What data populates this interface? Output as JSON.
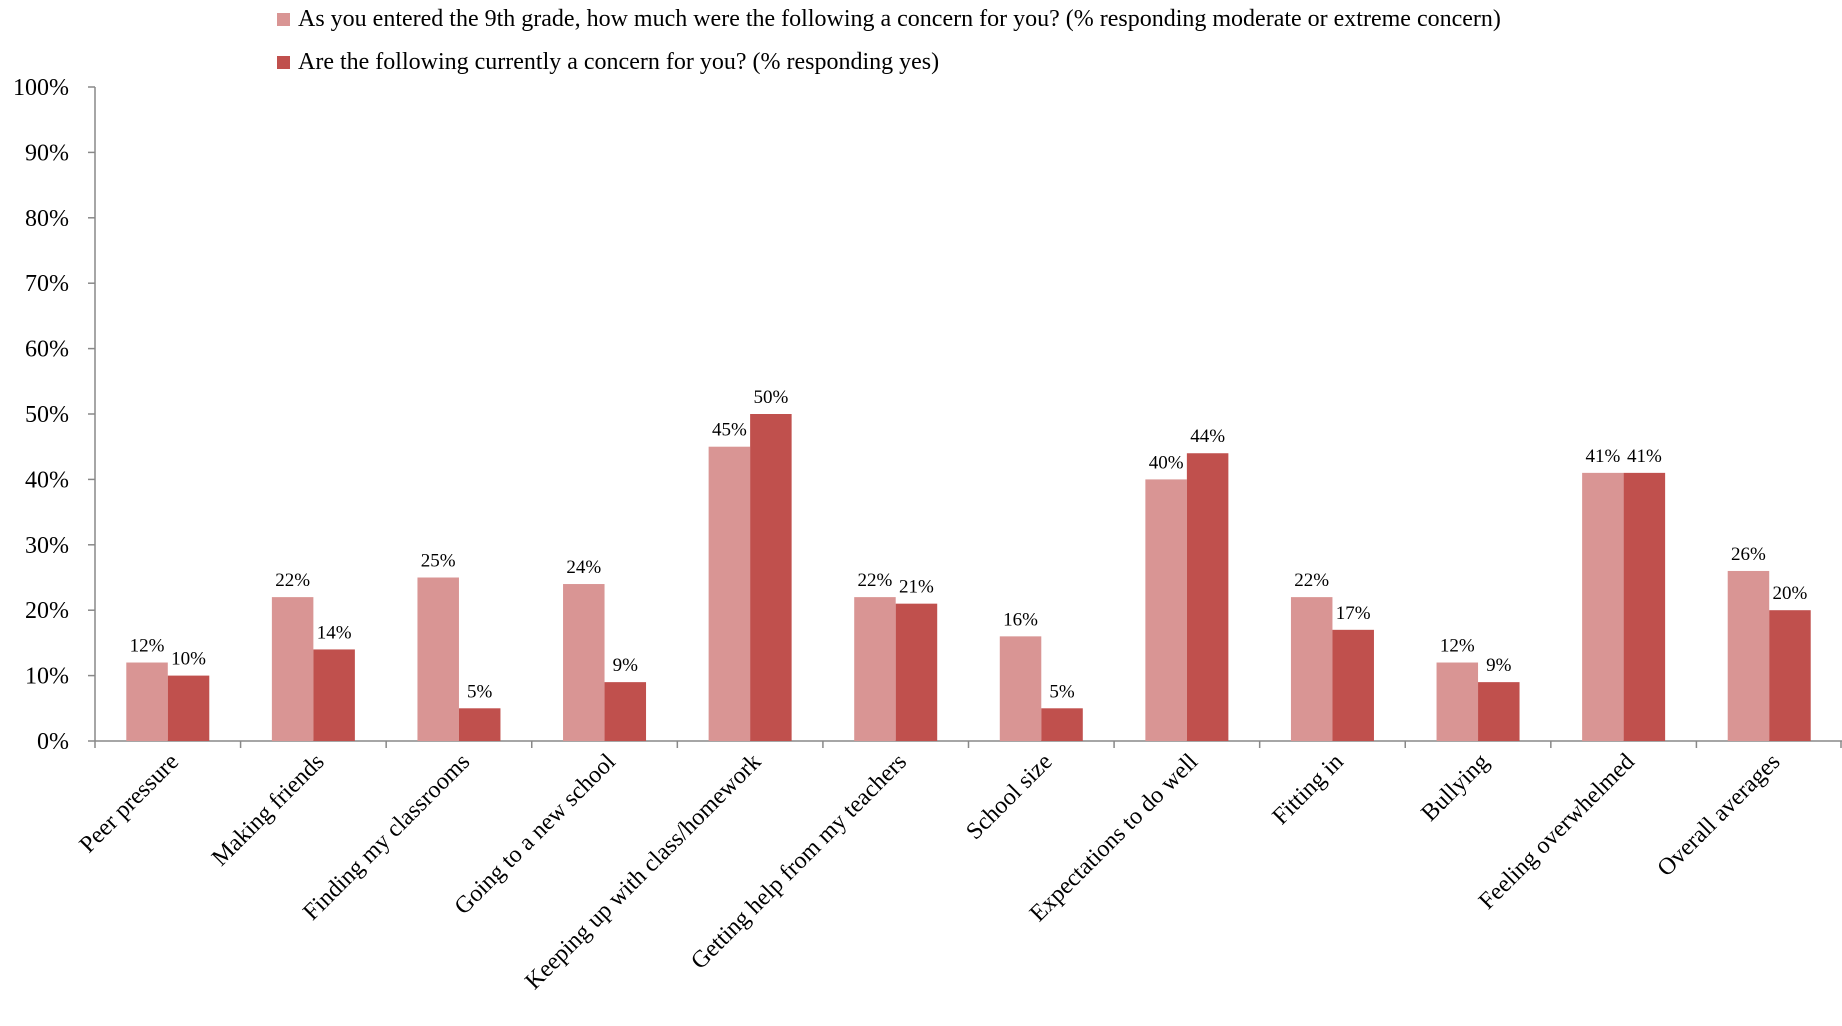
{
  "chart_data": {
    "type": "bar",
    "title": "",
    "xlabel": "",
    "ylabel": "",
    "ylim": [
      0,
      100
    ],
    "yticks": [
      "0%",
      "10%",
      "20%",
      "30%",
      "40%",
      "50%",
      "60%",
      "70%",
      "80%",
      "90%",
      "100%"
    ],
    "legend_position": "top-left",
    "categories": [
      "Peer pressure",
      "Making friends",
      "Finding my classrooms",
      "Going to a new school",
      "Keeping up with class/homework",
      "Getting help from my teachers",
      "School size",
      "Expectations to do well",
      "Fitting in",
      "Bullying",
      "Feeling overwhelmed",
      "Overall averages"
    ],
    "series": [
      {
        "name": "As you entered the 9th grade, how much were the following a concern for you? (% responding moderate or extreme concern)",
        "color": "#d99594",
        "values": [
          12,
          22,
          25,
          24,
          45,
          22,
          16,
          40,
          22,
          12,
          41,
          26
        ],
        "labels": [
          "12%",
          "22%",
          "25%",
          "24%",
          "45%",
          "22%",
          "16%",
          "40%",
          "22%",
          "12%",
          "41%",
          "26%"
        ]
      },
      {
        "name": "Are the following currently a concern for you? (% responding yes)",
        "color": "#c0504d",
        "values": [
          10,
          14,
          5,
          9,
          50,
          21,
          5,
          44,
          17,
          9,
          41,
          20
        ],
        "labels": [
          "10%",
          "14%",
          "5%",
          "9%",
          "50%",
          "21%",
          "5%",
          "44%",
          "17%",
          "9%",
          "41%",
          "20%"
        ]
      }
    ]
  }
}
